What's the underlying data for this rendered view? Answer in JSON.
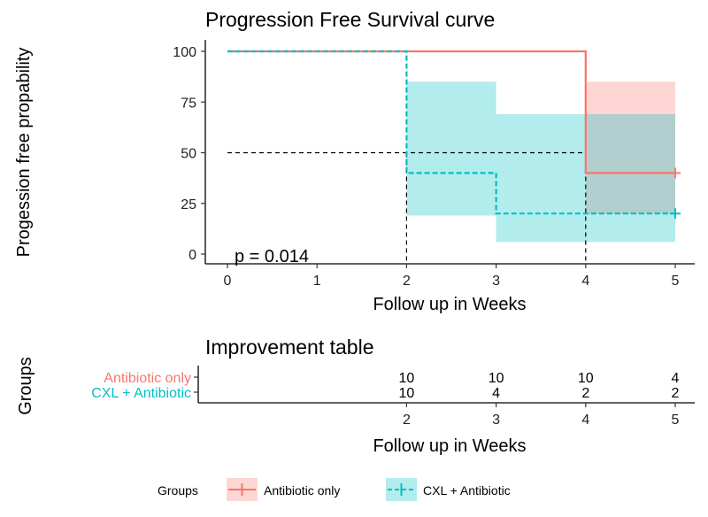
{
  "chart_data": [
    {
      "type": "line",
      "subtype": "kaplan-meier step curve with confidence bands",
      "title": "Progression Free Survival curve",
      "xlabel": "Follow up in Weeks",
      "ylabel": "Progession free propability",
      "xlim": [
        0,
        5
      ],
      "ylim": [
        0,
        100
      ],
      "x_ticks": [
        0,
        1,
        2,
        3,
        4,
        5
      ],
      "y_ticks": [
        0,
        25,
        50,
        75,
        100
      ],
      "grid": false,
      "annotation": "p = 0.014",
      "median_reference_y": 50,
      "median_reference_x": [
        2,
        4
      ],
      "series": [
        {
          "name": "Antibiotic only",
          "color": "#F8766D",
          "line_style": "solid",
          "x": [
            0,
            4,
            5
          ],
          "y": [
            100,
            40,
            40
          ],
          "censor_x": [
            5
          ],
          "censor_y": [
            40
          ],
          "ci": [
            {
              "x_from": 4,
              "x_to": 5,
              "lower": 20,
              "upper": 85
            }
          ]
        },
        {
          "name": "CXL + Antibiotic",
          "color": "#00BFC4",
          "line_style": "dashed",
          "x": [
            0,
            2,
            3,
            5
          ],
          "y": [
            100,
            40,
            20,
            20
          ],
          "censor_x": [
            5
          ],
          "censor_y": [
            20
          ],
          "ci": [
            {
              "x_from": 2,
              "x_to": 3,
              "lower": 19,
              "upper": 85
            },
            {
              "x_from": 3,
              "x_to": 5,
              "lower": 6,
              "upper": 69
            }
          ]
        }
      ]
    },
    {
      "type": "table",
      "title": "Improvement table",
      "xlabel": "Follow up in Weeks",
      "ylabel": "Groups",
      "x": [
        2,
        3,
        4,
        5
      ],
      "series": [
        {
          "name": "Antibiotic only",
          "color": "#F8766D",
          "values": [
            10,
            10,
            10,
            4
          ]
        },
        {
          "name": "CXL + Antibiotic",
          "color": "#00BFC4",
          "values": [
            10,
            4,
            2,
            2
          ]
        }
      ]
    }
  ],
  "legend": {
    "title": "Groups",
    "items": [
      {
        "label": "Antibiotic only",
        "color": "#F8766D",
        "line_style": "solid"
      },
      {
        "label": "CXL + Antibiotic",
        "color": "#00BFC4",
        "line_style": "dashed"
      }
    ]
  }
}
